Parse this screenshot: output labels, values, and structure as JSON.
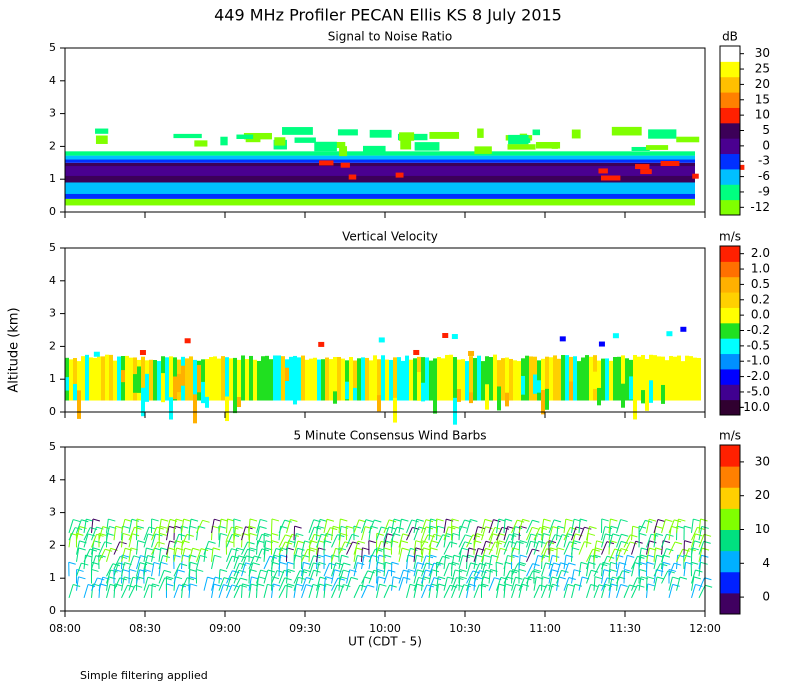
{
  "title": "449 MHz Profiler PECAN Ellis KS  8 July 2015",
  "y_axis_label": "Altitude (km)",
  "x_axis_label": "UT  (CDT - 5)",
  "footnote": "Simple filtering applied",
  "xticks": [
    "08:00",
    "08:30",
    "09:00",
    "09:30",
    "10:00",
    "10:30",
    "11:00",
    "11:30",
    "12:00"
  ],
  "panels": [
    {
      "title": "Signal to Noise Ratio",
      "ylim": [
        0,
        5
      ],
      "yticks": [
        0,
        1,
        2,
        3,
        4,
        5
      ],
      "colorbar": {
        "unit": "dB",
        "ticks": [
          -12,
          -9,
          -6,
          -3,
          0,
          5,
          10,
          15,
          20,
          25,
          30
        ],
        "colors": [
          "#80ff00",
          "#00ff80",
          "#00c0ff",
          "#0030ff",
          "#4a0090",
          "#3c0058",
          "#ff2000",
          "#ff8000",
          "#ffc000",
          "#ffff00",
          "#ffffff"
        ]
      }
    },
    {
      "title": "Vertical Velocity",
      "ylim": [
        0,
        5
      ],
      "yticks": [
        0,
        1,
        2,
        3,
        4,
        5
      ],
      "colorbar": {
        "unit": "m/s",
        "ticks": [
          {
            "value": -10,
            "label": "-10.0"
          },
          {
            "value": -5,
            "label": "-5.0"
          },
          {
            "value": -2,
            "label": "-2.0"
          },
          {
            "value": -1,
            "label": "-1.0"
          },
          -0.5,
          -0.2,
          {
            "value": 0,
            "label": "0.0"
          },
          0.2,
          0.5,
          {
            "value": 1,
            "label": "1.0"
          },
          {
            "value": 2,
            "label": "2.0"
          }
        ],
        "colors": [
          "#300030",
          "#400090",
          "#0000ff",
          "#0090ff",
          "#00ffff",
          "#20e020",
          "#ffff00",
          "#ffd000",
          "#ffb000",
          "#ff7000",
          "#ff2000"
        ]
      }
    },
    {
      "title": "5 Minute Consensus Wind Barbs",
      "ylim": [
        0,
        5
      ],
      "yticks": [
        0,
        1,
        2,
        3,
        4,
        5
      ],
      "colorbar": {
        "unit": "m/s",
        "ticks": [
          0,
          4,
          10,
          20,
          30
        ],
        "colors": [
          "#400060",
          "#0020ff",
          "#00b0ff",
          "#00e080",
          "#80ff00",
          "#ffd000",
          "#ff8000",
          "#ff2000"
        ]
      }
    }
  ]
}
